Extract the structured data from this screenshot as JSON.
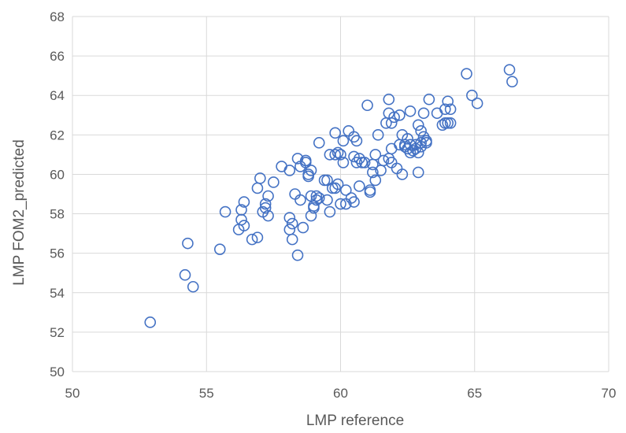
{
  "chart_data": {
    "type": "scatter",
    "title": "",
    "xlabel": "LMP reference",
    "ylabel": "LMP FOM2_predicted",
    "xlim": [
      50,
      70
    ],
    "ylim": [
      50,
      68
    ],
    "x_ticks": [
      50,
      55,
      60,
      65,
      70
    ],
    "y_ticks": [
      50,
      52,
      54,
      56,
      58,
      60,
      62,
      64,
      66,
      68
    ],
    "grid": true,
    "legend": "none",
    "marker": "hollow-circle",
    "colors": {
      "marker": "#4472C4",
      "grid": "#d9d9d9",
      "axis_text": "#595959"
    },
    "series": [
      {
        "points": [
          [
            52.9,
            52.5
          ],
          [
            54.2,
            54.9
          ],
          [
            54.3,
            56.5
          ],
          [
            54.5,
            54.3
          ],
          [
            55.5,
            56.2
          ],
          [
            55.7,
            58.1
          ],
          [
            56.2,
            57.2
          ],
          [
            56.3,
            57.7
          ],
          [
            56.3,
            58.2
          ],
          [
            56.4,
            58.6
          ],
          [
            56.4,
            57.4
          ],
          [
            56.7,
            56.7
          ],
          [
            56.9,
            56.8
          ],
          [
            56.9,
            59.3
          ],
          [
            57.0,
            59.8
          ],
          [
            57.1,
            58.1
          ],
          [
            57.2,
            58.5
          ],
          [
            57.2,
            58.3
          ],
          [
            57.3,
            58.9
          ],
          [
            57.3,
            57.9
          ],
          [
            57.5,
            59.6
          ],
          [
            57.8,
            60.4
          ],
          [
            58.1,
            60.2
          ],
          [
            58.1,
            57.8
          ],
          [
            58.1,
            57.2
          ],
          [
            58.2,
            56.7
          ],
          [
            58.2,
            57.5
          ],
          [
            58.3,
            59.0
          ],
          [
            58.4,
            60.8
          ],
          [
            58.4,
            55.9
          ],
          [
            58.5,
            58.7
          ],
          [
            58.5,
            60.4
          ],
          [
            58.6,
            57.3
          ],
          [
            58.7,
            60.7
          ],
          [
            58.7,
            60.6
          ],
          [
            58.8,
            59.9
          ],
          [
            58.8,
            60.0
          ],
          [
            58.9,
            60.2
          ],
          [
            58.9,
            58.9
          ],
          [
            58.9,
            57.9
          ],
          [
            59.0,
            58.3
          ],
          [
            59.0,
            58.4
          ],
          [
            59.1,
            58.9
          ],
          [
            59.1,
            58.7
          ],
          [
            59.2,
            58.8
          ],
          [
            59.2,
            61.6
          ],
          [
            59.4,
            59.7
          ],
          [
            59.5,
            59.7
          ],
          [
            59.5,
            58.7
          ],
          [
            59.6,
            58.1
          ],
          [
            59.6,
            61.0
          ],
          [
            59.7,
            59.3
          ],
          [
            59.8,
            59.3
          ],
          [
            59.8,
            62.1
          ],
          [
            59.8,
            61.0
          ],
          [
            59.9,
            61.1
          ],
          [
            59.9,
            59.5
          ],
          [
            60.0,
            58.5
          ],
          [
            60.0,
            61.0
          ],
          [
            60.1,
            61.7
          ],
          [
            60.1,
            60.6
          ],
          [
            60.2,
            59.2
          ],
          [
            60.2,
            58.5
          ],
          [
            60.3,
            62.2
          ],
          [
            60.4,
            58.8
          ],
          [
            60.5,
            58.6
          ],
          [
            60.5,
            61.9
          ],
          [
            60.5,
            60.9
          ],
          [
            60.6,
            61.7
          ],
          [
            60.6,
            60.6
          ],
          [
            60.7,
            60.8
          ],
          [
            60.7,
            59.4
          ],
          [
            60.8,
            60.6
          ],
          [
            60.9,
            60.6
          ],
          [
            61.0,
            63.5
          ],
          [
            61.1,
            59.1
          ],
          [
            61.1,
            59.2
          ],
          [
            61.2,
            60.1
          ],
          [
            61.2,
            60.5
          ],
          [
            61.3,
            59.7
          ],
          [
            61.3,
            61.0
          ],
          [
            61.4,
            62.0
          ],
          [
            61.5,
            60.2
          ],
          [
            61.6,
            60.7
          ],
          [
            61.7,
            62.6
          ],
          [
            61.8,
            63.8
          ],
          [
            61.8,
            63.1
          ],
          [
            61.8,
            60.8
          ],
          [
            61.9,
            62.6
          ],
          [
            61.9,
            60.6
          ],
          [
            61.9,
            61.3
          ],
          [
            62.0,
            62.9
          ],
          [
            62.1,
            60.3
          ],
          [
            62.2,
            61.5
          ],
          [
            62.2,
            63.0
          ],
          [
            62.3,
            60.0
          ],
          [
            62.3,
            62.0
          ],
          [
            62.4,
            61.4
          ],
          [
            62.4,
            61.5
          ],
          [
            62.5,
            61.8
          ],
          [
            62.5,
            61.3
          ],
          [
            62.6,
            61.5
          ],
          [
            62.6,
            61.1
          ],
          [
            62.6,
            63.2
          ],
          [
            62.7,
            61.2
          ],
          [
            62.8,
            61.3
          ],
          [
            62.8,
            61.5
          ],
          [
            62.9,
            61.1
          ],
          [
            62.9,
            62.5
          ],
          [
            62.9,
            60.1
          ],
          [
            63.0,
            61.6
          ],
          [
            63.0,
            61.4
          ],
          [
            63.0,
            62.2
          ],
          [
            63.1,
            61.9
          ],
          [
            63.1,
            63.1
          ],
          [
            63.2,
            61.7
          ],
          [
            63.2,
            61.6
          ],
          [
            63.3,
            63.8
          ],
          [
            63.6,
            63.1
          ],
          [
            63.8,
            62.5
          ],
          [
            63.9,
            62.6
          ],
          [
            63.9,
            63.3
          ],
          [
            64.0,
            62.6
          ],
          [
            64.0,
            63.7
          ],
          [
            64.1,
            62.6
          ],
          [
            64.1,
            63.3
          ],
          [
            64.7,
            65.1
          ],
          [
            64.9,
            64.0
          ],
          [
            65.1,
            63.6
          ],
          [
            66.3,
            65.3
          ],
          [
            66.4,
            64.7
          ]
        ]
      }
    ]
  }
}
